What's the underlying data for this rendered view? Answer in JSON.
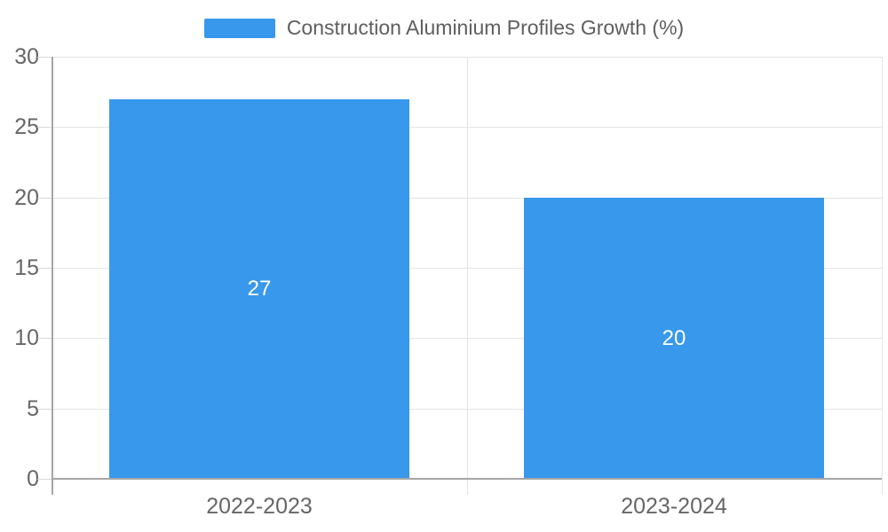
{
  "chart_data": {
    "type": "bar",
    "title": "Construction Aluminium Profiles Growth (%)",
    "categories": [
      "2022-2023",
      "2023-2024"
    ],
    "series": [
      {
        "name": "Construction Aluminium Profiles Growth (%)",
        "values": [
          27,
          20
        ]
      }
    ],
    "values": [
      27,
      20
    ],
    "xlabel": "",
    "ylabel": "",
    "ylim": [
      0,
      30
    ],
    "yticks": [
      0,
      5,
      10,
      15,
      20,
      25,
      30
    ],
    "grid": true,
    "legend_position": "top",
    "bar_labels_inside": true
  },
  "colors": {
    "bar": "#3898ec",
    "grid": "#e5e5e5",
    "boundary": "#e2e2e2",
    "axis": "#a6a6a6",
    "tick": "#d8d8d8",
    "axis_text": "#666666",
    "legend_text": "#5e5e5e",
    "value_text": "#ffffff",
    "background": "#ffffff"
  }
}
